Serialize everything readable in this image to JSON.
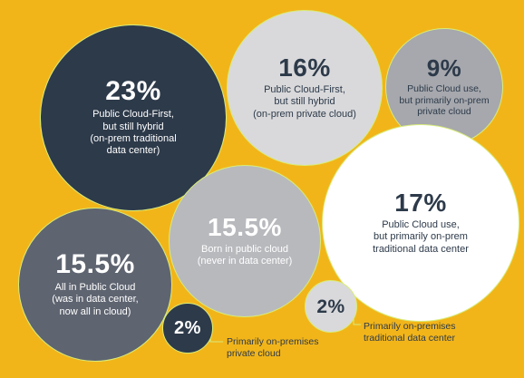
{
  "chart_data": {
    "type": "bubble",
    "title": "",
    "bubbles": [
      {
        "value": 23,
        "label": "23%",
        "lines": [
          "Public Cloud-First,",
          "but still hybrid",
          "(on-prem traditional",
          "data center)"
        ],
        "fill": "#2D3A4A",
        "text_color": "#FFFFFF"
      },
      {
        "value": 16,
        "label": "16%",
        "lines": [
          "Public Cloud-First,",
          "but still hybrid",
          "(on-prem private cloud)"
        ],
        "fill": "#D9D9DB",
        "text_color": "#2D3A4A"
      },
      {
        "value": 9,
        "label": "9%",
        "lines": [
          "Public Cloud use,",
          "but primarily on-prem",
          "private cloud"
        ],
        "fill": "#A6A8AD",
        "text_color": "#2D3A4A"
      },
      {
        "value": 17,
        "label": "17%",
        "lines": [
          "Public Cloud use,",
          "but primarily on-prem",
          "traditional data center"
        ],
        "fill": "#FFFFFF",
        "text_color": "#2D3A4A"
      },
      {
        "value": 15.5,
        "label": "15.5%",
        "lines": [
          "Born in public cloud",
          "(never in data center)"
        ],
        "fill": "#B8B9BD",
        "text_color": "#FFFFFF"
      },
      {
        "value": 15.5,
        "label": "15.5%",
        "lines": [
          "All in Public Cloud",
          "(was in data center,",
          "now all in cloud)"
        ],
        "fill": "#5E6470",
        "text_color": "#FFFFFF"
      },
      {
        "value": 2,
        "label": "2%",
        "lines": [
          "Primarily on-premises",
          "private cloud"
        ],
        "fill": "#2D3A4A",
        "text_color": "#FFFFFF",
        "external": true
      },
      {
        "value": 2,
        "label": "2%",
        "lines": [
          "Primarily on-premises",
          "traditional data center"
        ],
        "fill": "#D9D9DB",
        "text_color": "#2D3A4A",
        "external": true
      }
    ],
    "colors": {
      "background": "#F2B519",
      "outline": "#D8EC7A",
      "leader": "#D8EC7A"
    }
  }
}
